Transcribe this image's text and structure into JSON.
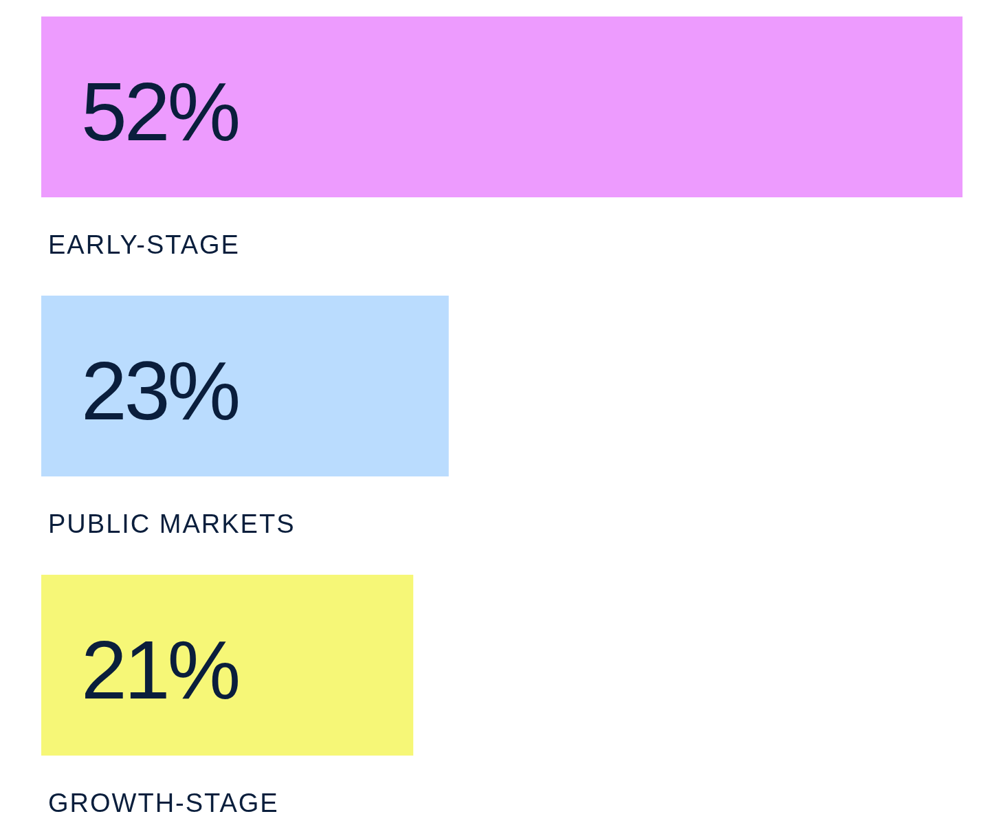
{
  "chart_data": {
    "type": "bar",
    "orientation": "horizontal",
    "categories": [
      "EARLY-STAGE",
      "PUBLIC MARKETS",
      "GROWTH-STAGE"
    ],
    "values": [
      52,
      23,
      21
    ],
    "colors": [
      "#ed9bfe",
      "#badcfe",
      "#f6f777"
    ],
    "value_labels": [
      "52%",
      "23%",
      "21%"
    ]
  }
}
